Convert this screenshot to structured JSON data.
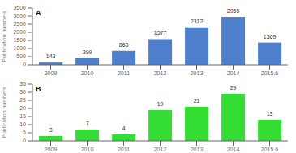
{
  "chart_data": [
    {
      "type": "bar",
      "categories": [
        "2009",
        "2010",
        "2011",
        "2012",
        "2013",
        "2014",
        "2015.6"
      ],
      "values": [
        143,
        399,
        863,
        1577,
        2312,
        2955,
        1369
      ],
      "color": "#4d7fcc",
      "y_label": "Publication numbers",
      "annotations": [
        "A"
      ],
      "ylim": [
        0,
        3500
      ],
      "yticks": [
        0,
        500,
        1000,
        1500,
        2000,
        2500,
        3000,
        3500
      ],
      "data_labels": true,
      "grid": false
    },
    {
      "type": "bar",
      "categories": [
        "2009",
        "2010",
        "2011",
        "2012",
        "2013",
        "2014",
        "2015.6"
      ],
      "values": [
        3,
        7,
        4,
        19,
        21,
        29,
        13
      ],
      "color": "#33dd33",
      "y_label": "Publication numbers",
      "annotations": [
        "B"
      ],
      "ylim": [
        0,
        35
      ],
      "yticks": [
        0,
        5,
        10,
        15,
        20,
        25,
        30,
        35
      ],
      "data_labels": true,
      "grid": false
    }
  ]
}
